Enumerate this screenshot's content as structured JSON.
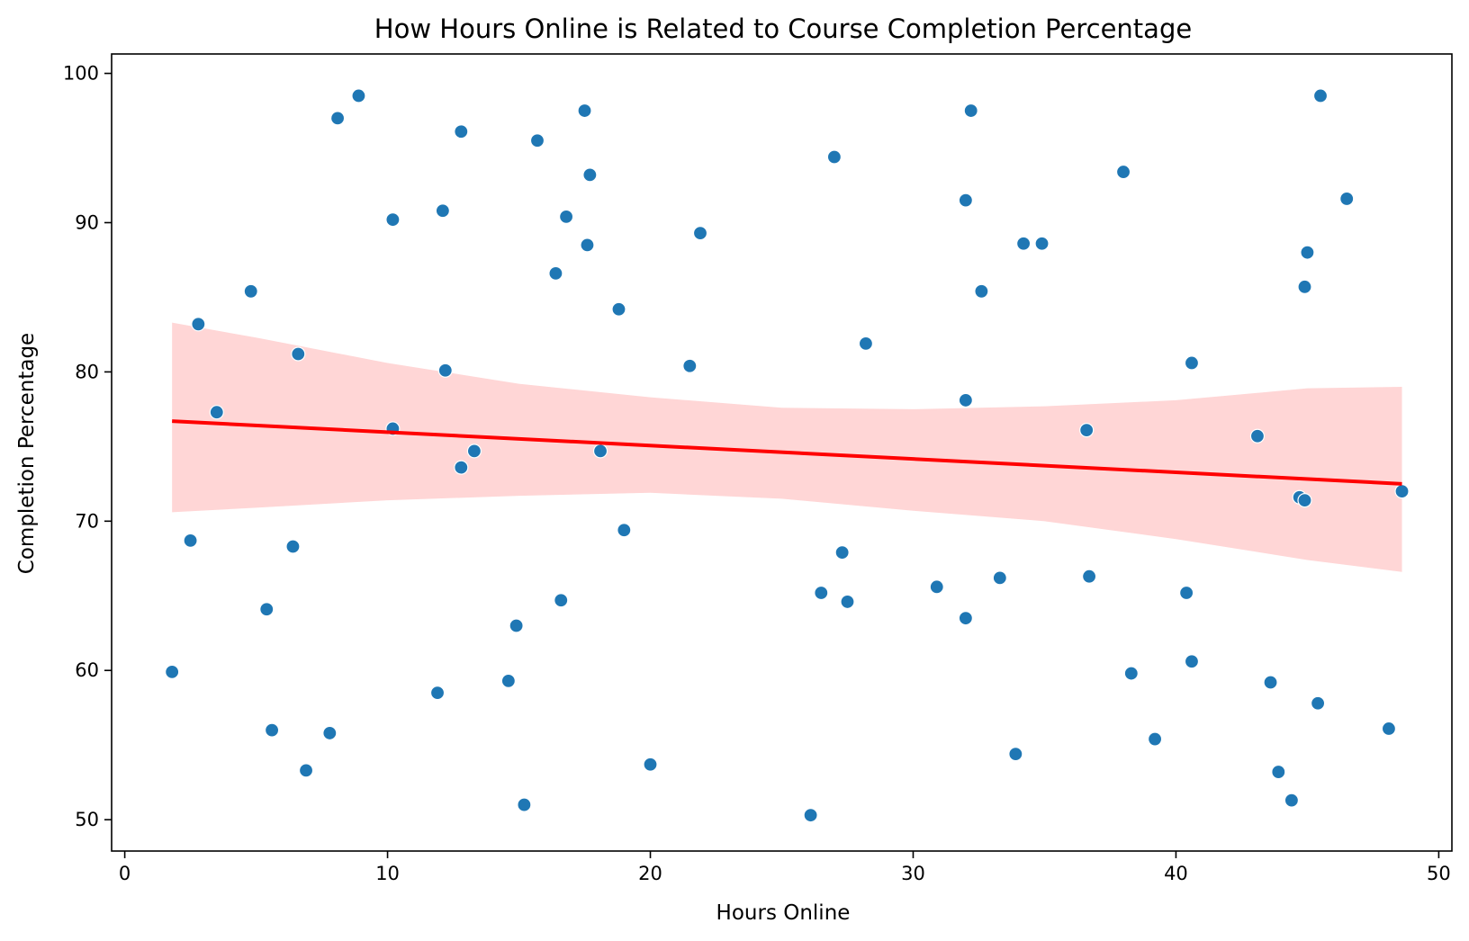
{
  "chart_data": {
    "type": "scatter",
    "title": "How Hours Online is Related to Course Completion Percentage",
    "xlabel": "Hours Online",
    "ylabel": "Completion Percentage",
    "xlim": [
      -0.5,
      50.5
    ],
    "ylim": [
      47.9,
      101.3
    ],
    "xticks": [
      0,
      10,
      20,
      30,
      40,
      50
    ],
    "yticks": [
      50,
      60,
      70,
      80,
      90,
      100
    ],
    "grid": false,
    "legend": "none",
    "colors": {
      "points": "#1f77b4",
      "points_edge": "#ffffff",
      "regression_line": "#ff0000",
      "confidence_band": "#ffd6d6"
    },
    "points": [
      {
        "x": 1.8,
        "y": 59.9
      },
      {
        "x": 2.5,
        "y": 68.7
      },
      {
        "x": 2.8,
        "y": 83.2
      },
      {
        "x": 3.5,
        "y": 77.3
      },
      {
        "x": 4.8,
        "y": 85.4
      },
      {
        "x": 5.4,
        "y": 64.1
      },
      {
        "x": 5.6,
        "y": 56.0
      },
      {
        "x": 6.4,
        "y": 68.3
      },
      {
        "x": 6.6,
        "y": 81.2
      },
      {
        "x": 6.9,
        "y": 53.3
      },
      {
        "x": 7.8,
        "y": 55.8
      },
      {
        "x": 8.1,
        "y": 97.0
      },
      {
        "x": 8.9,
        "y": 98.5
      },
      {
        "x": 10.2,
        "y": 90.2
      },
      {
        "x": 10.2,
        "y": 76.2
      },
      {
        "x": 11.9,
        "y": 58.5
      },
      {
        "x": 12.1,
        "y": 90.8
      },
      {
        "x": 12.2,
        "y": 80.1
      },
      {
        "x": 12.8,
        "y": 96.1
      },
      {
        "x": 12.8,
        "y": 73.6
      },
      {
        "x": 13.3,
        "y": 74.7
      },
      {
        "x": 14.6,
        "y": 59.3
      },
      {
        "x": 14.9,
        "y": 63.0
      },
      {
        "x": 15.2,
        "y": 51.0
      },
      {
        "x": 15.7,
        "y": 95.5
      },
      {
        "x": 16.4,
        "y": 86.6
      },
      {
        "x": 16.6,
        "y": 64.7
      },
      {
        "x": 16.8,
        "y": 90.4
      },
      {
        "x": 17.5,
        "y": 97.5
      },
      {
        "x": 17.6,
        "y": 88.5
      },
      {
        "x": 17.7,
        "y": 93.2
      },
      {
        "x": 18.1,
        "y": 74.7
      },
      {
        "x": 18.8,
        "y": 84.2
      },
      {
        "x": 19.0,
        "y": 69.4
      },
      {
        "x": 20.0,
        "y": 53.7
      },
      {
        "x": 21.5,
        "y": 80.4
      },
      {
        "x": 21.9,
        "y": 89.3
      },
      {
        "x": 26.1,
        "y": 50.3
      },
      {
        "x": 26.5,
        "y": 65.2
      },
      {
        "x": 27.0,
        "y": 94.4
      },
      {
        "x": 27.3,
        "y": 67.9
      },
      {
        "x": 27.5,
        "y": 64.6
      },
      {
        "x": 28.2,
        "y": 81.9
      },
      {
        "x": 30.9,
        "y": 65.6
      },
      {
        "x": 32.0,
        "y": 91.5
      },
      {
        "x": 32.0,
        "y": 78.1
      },
      {
        "x": 32.0,
        "y": 63.5
      },
      {
        "x": 32.2,
        "y": 97.5
      },
      {
        "x": 32.6,
        "y": 85.4
      },
      {
        "x": 33.3,
        "y": 66.2
      },
      {
        "x": 33.9,
        "y": 54.4
      },
      {
        "x": 34.2,
        "y": 88.6
      },
      {
        "x": 34.9,
        "y": 88.6
      },
      {
        "x": 36.6,
        "y": 76.1
      },
      {
        "x": 36.7,
        "y": 66.3
      },
      {
        "x": 38.0,
        "y": 93.4
      },
      {
        "x": 38.3,
        "y": 59.8
      },
      {
        "x": 39.2,
        "y": 55.4
      },
      {
        "x": 40.4,
        "y": 65.2
      },
      {
        "x": 40.6,
        "y": 80.6
      },
      {
        "x": 40.6,
        "y": 60.6
      },
      {
        "x": 43.1,
        "y": 75.7
      },
      {
        "x": 43.6,
        "y": 59.2
      },
      {
        "x": 43.9,
        "y": 53.2
      },
      {
        "x": 44.4,
        "y": 51.3
      },
      {
        "x": 44.7,
        "y": 71.6
      },
      {
        "x": 44.9,
        "y": 71.4
      },
      {
        "x": 44.9,
        "y": 85.7
      },
      {
        "x": 45.0,
        "y": 88.0
      },
      {
        "x": 45.4,
        "y": 57.8
      },
      {
        "x": 45.5,
        "y": 98.5
      },
      {
        "x": 46.5,
        "y": 91.6
      },
      {
        "x": 48.1,
        "y": 56.1
      },
      {
        "x": 48.6,
        "y": 72.0
      }
    ],
    "regression_line": {
      "x": [
        1.8,
        48.6
      ],
      "y": [
        76.7,
        72.5
      ]
    },
    "confidence_band": {
      "x": [
        1.8,
        5.0,
        10.0,
        15.0,
        20.0,
        25.0,
        30.0,
        35.0,
        40.0,
        45.0,
        48.6
      ],
      "upper": [
        83.3,
        82.3,
        80.6,
        79.2,
        78.3,
        77.6,
        77.5,
        77.7,
        78.1,
        78.9,
        79.0
      ],
      "lower": [
        70.6,
        70.9,
        71.4,
        71.7,
        71.9,
        71.5,
        70.7,
        70.0,
        68.8,
        67.4,
        66.6
      ]
    }
  }
}
